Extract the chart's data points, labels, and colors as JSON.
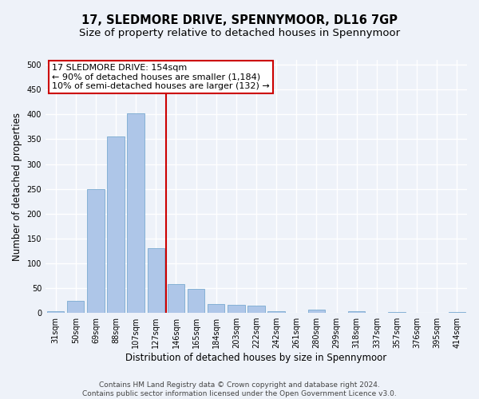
{
  "title": "17, SLEDMORE DRIVE, SPENNYMOOR, DL16 7GP",
  "subtitle": "Size of property relative to detached houses in Spennymoor",
  "xlabel": "Distribution of detached houses by size in Spennymoor",
  "ylabel": "Number of detached properties",
  "footer_line1": "Contains HM Land Registry data © Crown copyright and database right 2024.",
  "footer_line2": "Contains public sector information licensed under the Open Government Licence v3.0.",
  "categories": [
    "31sqm",
    "50sqm",
    "69sqm",
    "88sqm",
    "107sqm",
    "127sqm",
    "146sqm",
    "165sqm",
    "184sqm",
    "203sqm",
    "222sqm",
    "242sqm",
    "261sqm",
    "280sqm",
    "299sqm",
    "318sqm",
    "337sqm",
    "357sqm",
    "376sqm",
    "395sqm",
    "414sqm"
  ],
  "values": [
    3,
    25,
    250,
    355,
    402,
    130,
    58,
    48,
    18,
    16,
    14,
    4,
    0,
    6,
    0,
    4,
    0,
    1,
    0,
    0,
    1
  ],
  "bar_color": "#aec6e8",
  "bar_edge_color": "#7aaad0",
  "vline_color": "#cc0000",
  "annotation_box_color": "#ffffff",
  "annotation_box_edge": "#cc0000",
  "property_label": "17 SLEDMORE DRIVE: 154sqm",
  "annotation_line1": "← 90% of detached houses are smaller (1,184)",
  "annotation_line2": "10% of semi-detached houses are larger (132) →",
  "ylim": [
    0,
    510
  ],
  "yticks": [
    0,
    50,
    100,
    150,
    200,
    250,
    300,
    350,
    400,
    450,
    500
  ],
  "background_color": "#eef2f9",
  "grid_color": "#ffffff",
  "title_fontsize": 10.5,
  "subtitle_fontsize": 9.5,
  "axis_label_fontsize": 8.5,
  "tick_fontsize": 7,
  "annotation_fontsize": 8,
  "footer_fontsize": 6.5,
  "vline_x": 5.5
}
